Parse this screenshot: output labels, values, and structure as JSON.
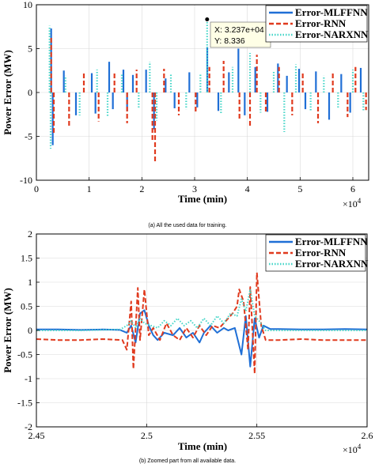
{
  "chart_data": [
    {
      "type": "line",
      "caption": "(a) All the used data for training.",
      "xlabel": "Time (min)",
      "ylabel": "Power Error (MW)",
      "x_multiplier": "×10",
      "x_multiplier_exp": "4",
      "xlim": [
        0,
        6.3
      ],
      "ylim": [
        -10,
        10
      ],
      "xticks": [
        "0",
        "1",
        "2",
        "3",
        "4",
        "5",
        "6"
      ],
      "yticks": [
        "10",
        "5",
        "0",
        "-5",
        "-10"
      ],
      "grid": true,
      "legend_position": "top-right",
      "datatip": {
        "x_text": "X: 3.237e+04",
        "y_text": "Y: 8.336",
        "x": 3.237,
        "y": 8.336
      },
      "series": [
        {
          "name": "Error-MLFFNN",
          "color": "#1f6fd6",
          "style": "solid",
          "spikes": [
            [
              0.28,
              7.3
            ],
            [
              0.31,
              -6.0
            ],
            [
              0.52,
              2.5
            ],
            [
              0.75,
              -2.6
            ],
            [
              1.05,
              2.2
            ],
            [
              1.12,
              -2.4
            ],
            [
              1.38,
              3.5
            ],
            [
              1.45,
              -1.9
            ],
            [
              1.65,
              2.6
            ],
            [
              1.72,
              -2.1
            ],
            [
              1.83,
              2.0
            ],
            [
              2.08,
              2.6
            ],
            [
              2.23,
              -4.2
            ],
            [
              2.45,
              1.6
            ],
            [
              2.62,
              -1.8
            ],
            [
              2.9,
              2.3
            ],
            [
              3.05,
              -1.7
            ],
            [
              3.24,
              5.2
            ],
            [
              3.45,
              -2.1
            ],
            [
              3.65,
              2.3
            ],
            [
              3.83,
              5.0
            ],
            [
              3.95,
              -2.6
            ],
            [
              4.15,
              2.9
            ],
            [
              4.38,
              -2.2
            ],
            [
              4.58,
              3.3
            ],
            [
              4.75,
              1.9
            ],
            [
              4.98,
              2.7
            ],
            [
              5.1,
              -1.9
            ],
            [
              5.3,
              2.4
            ],
            [
              5.55,
              -3.1
            ],
            [
              5.78,
              2.1
            ],
            [
              5.95,
              -2.3
            ],
            [
              6.15,
              2.8
            ]
          ]
        },
        {
          "name": "Error-RNN",
          "color": "#e03a1e",
          "style": "dashed",
          "spikes": [
            [
              0.28,
              6.5
            ],
            [
              0.33,
              -4.8
            ],
            [
              0.62,
              -4.0
            ],
            [
              0.9,
              2.2
            ],
            [
              1.18,
              -3.3
            ],
            [
              1.48,
              2.4
            ],
            [
              1.72,
              -3.5
            ],
            [
              1.9,
              2.6
            ],
            [
              2.2,
              -5.5
            ],
            [
              2.25,
              -7.9
            ],
            [
              2.42,
              2.7
            ],
            [
              2.7,
              -2.6
            ],
            [
              3.02,
              -2.3
            ],
            [
              3.28,
              2.9
            ],
            [
              3.55,
              3.6
            ],
            [
              3.85,
              -3.2
            ],
            [
              4.05,
              -3.8
            ],
            [
              4.18,
              4.3
            ],
            [
              4.35,
              -2.4
            ],
            [
              4.6,
              2.9
            ],
            [
              4.85,
              -2.6
            ],
            [
              5.05,
              2.2
            ],
            [
              5.34,
              -3.5
            ],
            [
              5.62,
              2.4
            ],
            [
              5.9,
              -2.8
            ],
            [
              6.05,
              2.9
            ],
            [
              6.25,
              -2.0
            ]
          ]
        },
        {
          "name": "Error-NARXNN",
          "color": "#45d6c8",
          "style": "dotted",
          "spikes": [
            [
              0.25,
              7.6
            ],
            [
              0.27,
              -6.4
            ],
            [
              0.55,
              1.9
            ],
            [
              0.82,
              -2.6
            ],
            [
              1.15,
              2.6
            ],
            [
              1.35,
              -2.7
            ],
            [
              1.62,
              2.1
            ],
            [
              1.94,
              -1.8
            ],
            [
              2.15,
              3.5
            ],
            [
              2.28,
              -3.2
            ],
            [
              2.55,
              2.2
            ],
            [
              2.84,
              -1.9
            ],
            [
              3.11,
              2.2
            ],
            [
              3.237,
              8.336
            ],
            [
              3.5,
              -2.4
            ],
            [
              3.72,
              2.9
            ],
            [
              4.05,
              4.5
            ],
            [
              4.25,
              -2.3
            ],
            [
              4.5,
              2.5
            ],
            [
              4.7,
              -4.5
            ],
            [
              4.92,
              3.2
            ],
            [
              5.2,
              -2.1
            ],
            [
              5.45,
              1.9
            ],
            [
              5.72,
              -1.8
            ],
            [
              6.0,
              2.6
            ],
            [
              6.2,
              -2.2
            ]
          ]
        }
      ]
    },
    {
      "type": "line",
      "caption": "(b) Zoomed part from all available data.",
      "xlabel": "Time (min)",
      "ylabel": "Power Error (MW)",
      "x_multiplier": "×10",
      "x_multiplier_exp": "4",
      "xlim": [
        2.45,
        2.6
      ],
      "ylim": [
        -2,
        2
      ],
      "xticks": [
        "2.45",
        "2.5",
        "2.55",
        "2.6"
      ],
      "yticks": [
        "2",
        "1.5",
        "1",
        "0.5",
        "0",
        "-0.5",
        "-1",
        "-1.5",
        "-2"
      ],
      "grid": true,
      "legend_position": "top-right",
      "series": [
        {
          "name": "Error-MLFFNN",
          "color": "#1f6fd6",
          "style": "solid",
          "points": [
            [
              2.45,
              0.02
            ],
            [
              2.46,
              0.02
            ],
            [
              2.47,
              0.01
            ],
            [
              2.48,
              0.02
            ],
            [
              2.488,
              0.01
            ],
            [
              2.491,
              -0.05
            ],
            [
              2.493,
              0.1
            ],
            [
              2.495,
              -0.25
            ],
            [
              2.497,
              0.35
            ],
            [
              2.499,
              0.42
            ],
            [
              2.501,
              0.1
            ],
            [
              2.503,
              -0.1
            ],
            [
              2.505,
              -0.2
            ],
            [
              2.508,
              -0.05
            ],
            [
              2.512,
              -0.1
            ],
            [
              2.515,
              0.05
            ],
            [
              2.518,
              -0.15
            ],
            [
              2.521,
              -0.05
            ],
            [
              2.524,
              -0.25
            ],
            [
              2.526,
              -0.05
            ],
            [
              2.529,
              0.1
            ],
            [
              2.532,
              -0.05
            ],
            [
              2.535,
              0.05
            ],
            [
              2.537,
              0.0
            ],
            [
              2.54,
              0.05
            ],
            [
              2.543,
              -0.5
            ],
            [
              2.545,
              0.3
            ],
            [
              2.547,
              -0.75
            ],
            [
              2.549,
              0.25
            ],
            [
              2.551,
              -0.15
            ],
            [
              2.553,
              0.1
            ],
            [
              2.556,
              0.03
            ],
            [
              2.56,
              0.03
            ],
            [
              2.57,
              0.02
            ],
            [
              2.58,
              0.02
            ],
            [
              2.59,
              0.03
            ],
            [
              2.6,
              0.02
            ]
          ]
        },
        {
          "name": "Error-RNN",
          "color": "#e03a1e",
          "style": "dashed",
          "points": [
            [
              2.45,
              -0.18
            ],
            [
              2.46,
              -0.2
            ],
            [
              2.47,
              -0.2
            ],
            [
              2.48,
              -0.18
            ],
            [
              2.489,
              -0.2
            ],
            [
              2.491,
              -0.4
            ],
            [
              2.493,
              0.6
            ],
            [
              2.494,
              -0.8
            ],
            [
              2.496,
              0.88
            ],
            [
              2.497,
              -0.2
            ],
            [
              2.499,
              0.85
            ],
            [
              2.501,
              -0.1
            ],
            [
              2.503,
              0.05
            ],
            [
              2.506,
              -0.2
            ],
            [
              2.509,
              0.15
            ],
            [
              2.512,
              -0.1
            ],
            [
              2.515,
              -0.2
            ],
            [
              2.518,
              0.05
            ],
            [
              2.521,
              -0.15
            ],
            [
              2.524,
              0.1
            ],
            [
              2.527,
              -0.1
            ],
            [
              2.53,
              0.1
            ],
            [
              2.533,
              0.05
            ],
            [
              2.536,
              0.2
            ],
            [
              2.539,
              0.35
            ],
            [
              2.541,
              0.5
            ],
            [
              2.542,
              0.85
            ],
            [
              2.544,
              0.6
            ],
            [
              2.546,
              -0.4
            ],
            [
              2.547,
              0.9
            ],
            [
              2.549,
              -0.9
            ],
            [
              2.55,
              1.2
            ],
            [
              2.552,
              0.1
            ],
            [
              2.554,
              -0.2
            ],
            [
              2.56,
              -0.2
            ],
            [
              2.57,
              -0.18
            ],
            [
              2.58,
              -0.2
            ],
            [
              2.59,
              -0.2
            ],
            [
              2.6,
              -0.2
            ]
          ]
        },
        {
          "name": "Error-NARXNN",
          "color": "#45d6c8",
          "style": "dotted",
          "points": [
            [
              2.45,
              0.0
            ],
            [
              2.47,
              0.0
            ],
            [
              2.488,
              0.02
            ],
            [
              2.491,
              0.1
            ],
            [
              2.493,
              0.2
            ],
            [
              2.495,
              0.05
            ],
            [
              2.497,
              0.25
            ],
            [
              2.499,
              0.15
            ],
            [
              2.502,
              0.1
            ],
            [
              2.505,
              0.05
            ],
            [
              2.508,
              0.2
            ],
            [
              2.511,
              0.1
            ],
            [
              2.514,
              0.25
            ],
            [
              2.517,
              0.1
            ],
            [
              2.52,
              0.2
            ],
            [
              2.523,
              0.05
            ],
            [
              2.526,
              0.25
            ],
            [
              2.529,
              0.1
            ],
            [
              2.532,
              0.3
            ],
            [
              2.535,
              0.15
            ],
            [
              2.538,
              0.35
            ],
            [
              2.541,
              0.3
            ],
            [
              2.543,
              0.65
            ],
            [
              2.545,
              0.4
            ],
            [
              2.547,
              0.85
            ],
            [
              2.549,
              0.3
            ],
            [
              2.551,
              0.2
            ],
            [
              2.554,
              0.0
            ],
            [
              2.57,
              0.0
            ],
            [
              2.6,
              0.0
            ]
          ]
        }
      ]
    }
  ]
}
